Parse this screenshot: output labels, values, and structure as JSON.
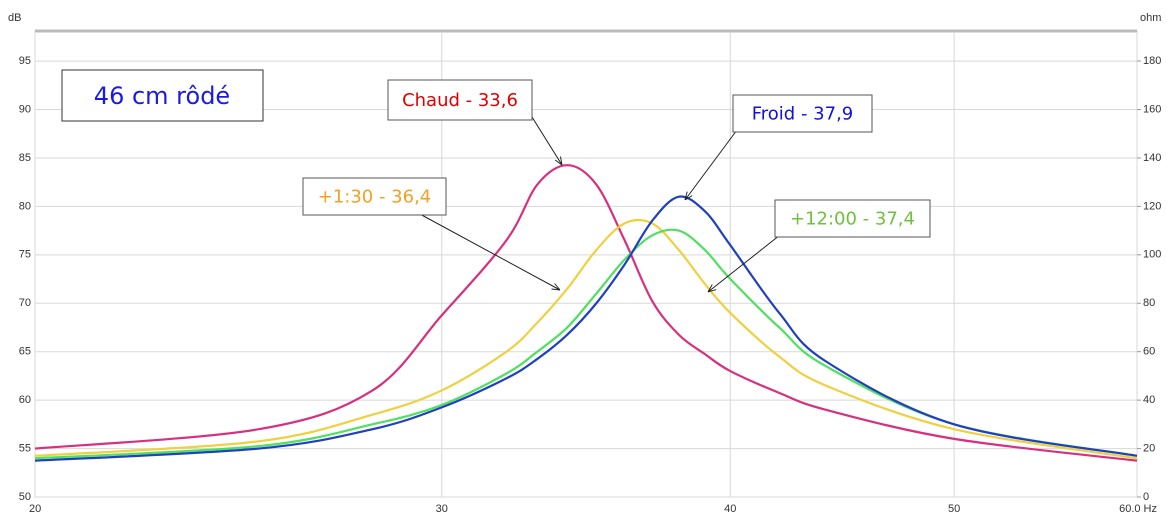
{
  "chart_data": {
    "type": "line",
    "title": "46 cm rôdé",
    "y_label": "dB",
    "y2_label": "ohm",
    "log_x": true,
    "grid": true,
    "xlim": [
      20,
      60
    ],
    "xticks": [
      20,
      30,
      40,
      50,
      {
        "value": 60,
        "label": "60.0 Hz"
      }
    ],
    "ylim": [
      50,
      98
    ],
    "yticks": [
      50,
      55,
      60,
      65,
      70,
      75,
      80,
      85,
      90,
      95
    ],
    "y2lim": [
      0,
      192
    ],
    "y2ticks": [
      0,
      20,
      40,
      60,
      80,
      100,
      120,
      140,
      160,
      180
    ],
    "x": [
      20,
      25,
      28,
      30,
      32,
      33,
      34,
      35,
      36,
      37,
      38,
      39,
      40,
      42,
      44,
      50,
      60
    ],
    "series": [
      {
        "name": "Chaud - 33,6",
        "color": "#d6307f",
        "label_color": "#e00000",
        "axis": "y2",
        "values": [
          20,
          28,
          44,
          75,
          106,
          129,
          137,
          129,
          106,
          81,
          67,
          59,
          52,
          43,
          36,
          24,
          15
        ]
      },
      {
        "name": "+1:30 - 36,4",
        "color": "#f0d040",
        "label_color": "#f4a020",
        "axis": "y2",
        "values": [
          17,
          23,
          34,
          44,
          60,
          72,
          86,
          102,
          113,
          113,
          102,
          88,
          76,
          58,
          46,
          28,
          16
        ]
      },
      {
        "name": "+12:00 - 37,4",
        "color": "#50e060",
        "label_color": "#70c040",
        "axis": "y2",
        "values": [
          16,
          21,
          30,
          38,
          51,
          60,
          70,
          84,
          98,
          108,
          110,
          102,
          90,
          70,
          54,
          30,
          17
        ]
      },
      {
        "name": "Froid - 37,9",
        "color": "#2040c0",
        "label_color": "#1010e0",
        "axis": "y2",
        "values": [
          15,
          20,
          28,
          37,
          49,
          57,
          67,
          80,
          96,
          114,
          124,
          118,
          104,
          76,
          56,
          30,
          17
        ]
      }
    ]
  }
}
